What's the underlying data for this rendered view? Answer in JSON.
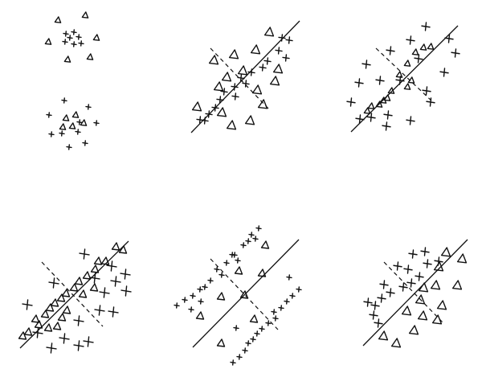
{
  "figure": {
    "ink": "#111111",
    "background": "#ffffff",
    "marker_types": [
      "triangle",
      "cross"
    ],
    "line_types": [
      "solid",
      "dashed"
    ],
    "panel_count": 6
  }
}
